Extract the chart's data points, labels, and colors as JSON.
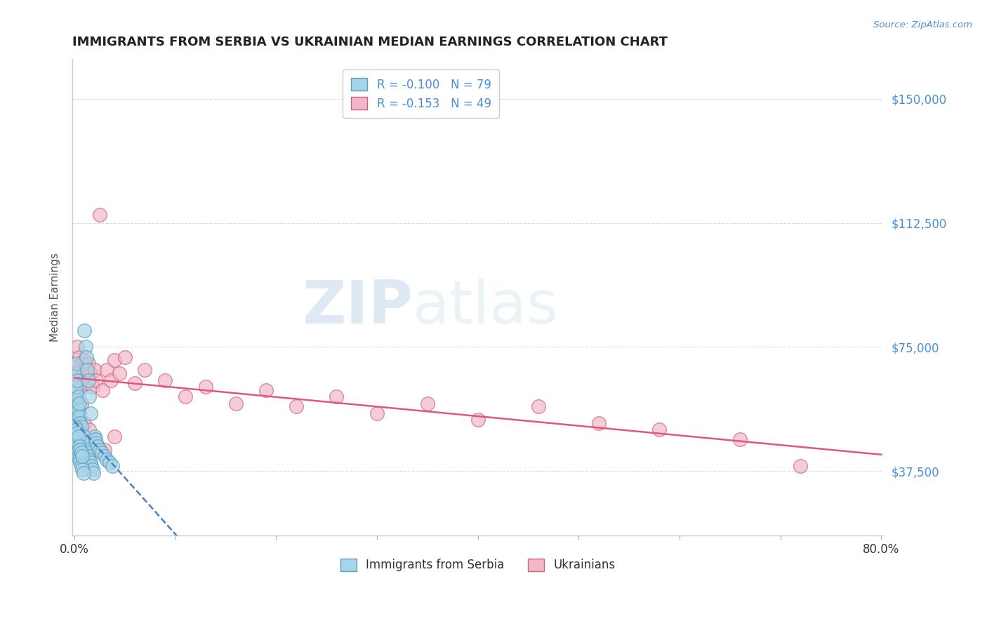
{
  "title": "IMMIGRANTS FROM SERBIA VS UKRAINIAN MEDIAN EARNINGS CORRELATION CHART",
  "source_text": "Source: ZipAtlas.com",
  "ylabel": "Median Earnings",
  "xlim": [
    -0.002,
    0.802
  ],
  "ylim": [
    18000,
    162000
  ],
  "yticks": [
    37500,
    75000,
    112500,
    150000
  ],
  "ytick_labels": [
    "$37,500",
    "$75,000",
    "$112,500",
    "$150,000"
  ],
  "xticks": [
    0.0,
    0.1,
    0.2,
    0.3,
    0.4,
    0.5,
    0.6,
    0.7,
    0.8
  ],
  "xtick_labels": [
    "0.0%",
    "",
    "",
    "",
    "",
    "",
    "",
    "",
    "80.0%"
  ],
  "background_color": "#ffffff",
  "grid_color": "#cccccc",
  "serbia_color": "#a8d4e8",
  "ukraine_color": "#f0b8c8",
  "serbia_edge": "#5a9fc0",
  "ukraine_edge": "#d06080",
  "trend_serbia_color": "#4a80c0",
  "trend_ukraine_color": "#e05878",
  "legend_r_serbia": "R = -0.100",
  "legend_n_serbia": "N = 79",
  "legend_r_ukraine": "R = -0.153",
  "legend_n_ukraine": "N = 49",
  "legend_label_serbia": "Immigrants from Serbia",
  "legend_label_ukraine": "Ukrainians",
  "watermark_zip": "ZIP",
  "watermark_atlas": "atlas",
  "title_color": "#222222",
  "ytick_color": "#4a90d9",
  "serbia_x": [
    0.001,
    0.001,
    0.001,
    0.001,
    0.002,
    0.002,
    0.002,
    0.002,
    0.002,
    0.003,
    0.003,
    0.003,
    0.003,
    0.004,
    0.004,
    0.004,
    0.004,
    0.005,
    0.005,
    0.005,
    0.005,
    0.006,
    0.006,
    0.006,
    0.007,
    0.007,
    0.007,
    0.008,
    0.008,
    0.009,
    0.01,
    0.011,
    0.012,
    0.013,
    0.014,
    0.015,
    0.016,
    0.017,
    0.018,
    0.019,
    0.02,
    0.021,
    0.022,
    0.023,
    0.025,
    0.027,
    0.03,
    0.032,
    0.035,
    0.038,
    0.001,
    0.001,
    0.001,
    0.001,
    0.002,
    0.002,
    0.002,
    0.003,
    0.003,
    0.003,
    0.004,
    0.004,
    0.004,
    0.005,
    0.005,
    0.006,
    0.006,
    0.007,
    0.007,
    0.008,
    0.008,
    0.009,
    0.01,
    0.011,
    0.012,
    0.013,
    0.014,
    0.015,
    0.016
  ],
  "serbia_y": [
    55000,
    58000,
    62000,
    67000,
    52000,
    55000,
    59000,
    63000,
    70000,
    50000,
    53000,
    57000,
    65000,
    48000,
    52000,
    56000,
    60000,
    46000,
    50000,
    54000,
    58000,
    44000,
    48000,
    52000,
    43000,
    47000,
    51000,
    42000,
    46000,
    41000,
    48000,
    46000,
    44000,
    43000,
    42000,
    41000,
    40000,
    39000,
    38000,
    37000,
    48000,
    47000,
    46000,
    45000,
    44000,
    43000,
    42000,
    41000,
    40000,
    39000,
    45000,
    47000,
    49000,
    51000,
    44000,
    46000,
    50000,
    43000,
    45000,
    49000,
    42000,
    44000,
    48000,
    41000,
    45000,
    40000,
    44000,
    39000,
    43000,
    38000,
    42000,
    37000,
    80000,
    75000,
    72000,
    68000,
    65000,
    60000,
    55000
  ],
  "ukraine_x": [
    0.002,
    0.003,
    0.004,
    0.005,
    0.006,
    0.007,
    0.008,
    0.009,
    0.01,
    0.011,
    0.012,
    0.013,
    0.014,
    0.016,
    0.018,
    0.02,
    0.022,
    0.025,
    0.028,
    0.032,
    0.036,
    0.04,
    0.045,
    0.05,
    0.06,
    0.07,
    0.09,
    0.11,
    0.13,
    0.16,
    0.19,
    0.22,
    0.26,
    0.3,
    0.35,
    0.4,
    0.46,
    0.52,
    0.58,
    0.66,
    0.72,
    0.003,
    0.005,
    0.007,
    0.01,
    0.015,
    0.02,
    0.03,
    0.04
  ],
  "ukraine_y": [
    62000,
    75000,
    68000,
    72000,
    65000,
    70000,
    63000,
    68000,
    71000,
    66000,
    69000,
    64000,
    70000,
    67000,
    63000,
    68000,
    65000,
    115000,
    62000,
    68000,
    65000,
    71000,
    67000,
    72000,
    64000,
    68000,
    65000,
    60000,
    63000,
    58000,
    62000,
    57000,
    60000,
    55000,
    58000,
    53000,
    57000,
    52000,
    50000,
    47000,
    39000,
    60000,
    55000,
    58000,
    52000,
    50000,
    47000,
    44000,
    48000
  ]
}
